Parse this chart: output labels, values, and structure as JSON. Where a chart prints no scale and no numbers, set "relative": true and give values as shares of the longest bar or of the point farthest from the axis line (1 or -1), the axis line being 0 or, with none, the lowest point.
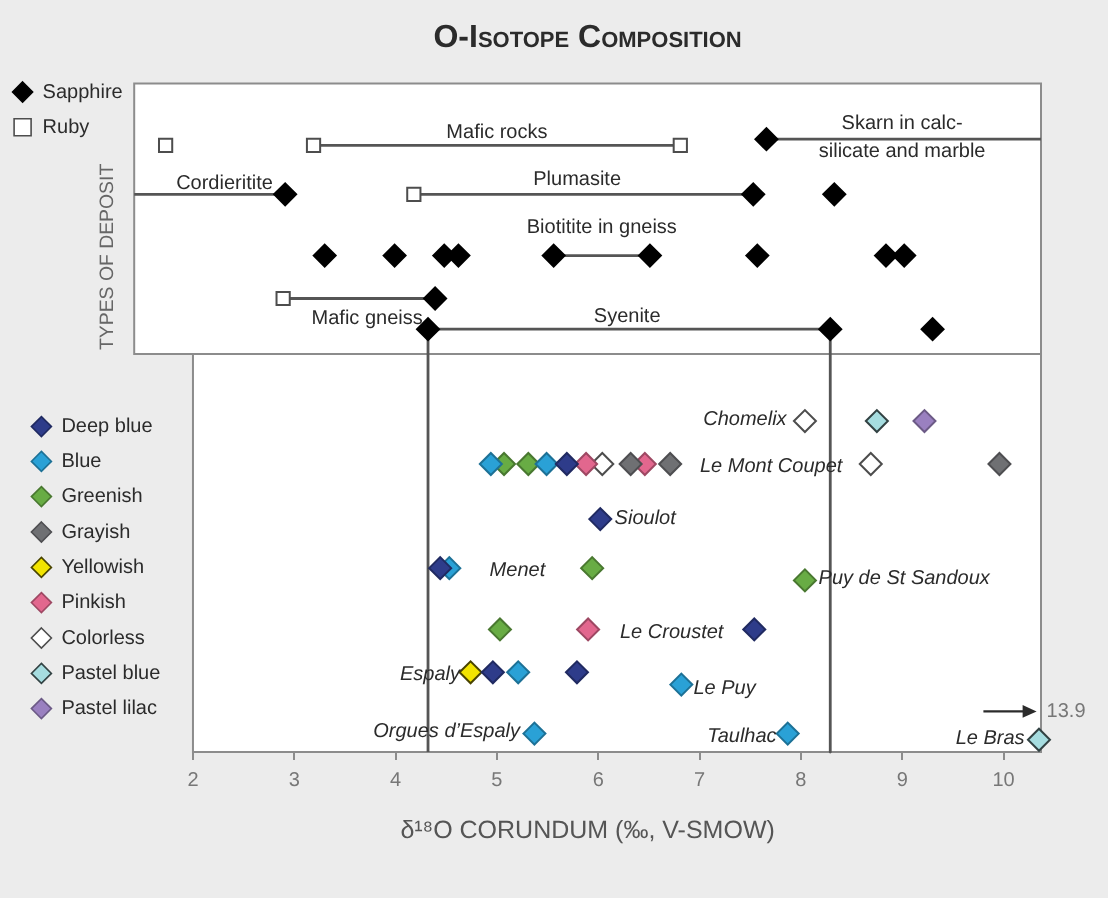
{
  "chart_data": {
    "type": "scatter",
    "title": "O-Isotope Composition",
    "ylabel": "TYPES OF DEPOSIT",
    "xlabel": "δ¹⁸O CORUNDUM (‰, V-SMOW)",
    "relative": true,
    "xlim": [
      1.42,
      10.37
    ],
    "xticks": [
      2,
      3,
      4,
      5,
      6,
      7,
      8,
      9,
      10
    ],
    "tick_labels": "x",
    "legend": "left",
    "marker": "diamond",
    "series": [
      {
        "name": "Sapphire",
        "color": "#000000",
        "x": [
          7.66,
          2.91,
          7.53,
          8.33,
          3.3,
          3.99,
          4.48,
          4.62,
          5.56,
          6.51,
          7.57,
          8.84,
          9.02,
          4.39,
          4.32,
          8.29,
          9.3
        ],
        "values": [
          1.0,
          0.91,
          0.91,
          0.91,
          0.81,
          0.81,
          0.81,
          0.81,
          0.81,
          0.81,
          0.81,
          0.81,
          0.81,
          0.74,
          0.69,
          0.69,
          0.69
        ]
      },
      {
        "name": "Ruby",
        "marker": "square",
        "color": "#ffffff",
        "x": [
          1.73,
          3.19,
          6.81,
          4.18,
          2.89
        ],
        "values": [
          0.99,
          0.99,
          0.99,
          0.91,
          0.74
        ]
      },
      {
        "name": "Mafic rocks",
        "type": "line",
        "marker": "none",
        "color": "#555555",
        "x": [
          3.19,
          6.81
        ],
        "values": [
          0.99,
          0.99
        ]
      },
      {
        "name": "Skarn in calc-\nsilicate and marble",
        "type": "line",
        "marker": "none",
        "color": "#555555",
        "x": [
          7.66,
          10.37
        ],
        "values": [
          1.0,
          1.0
        ]
      },
      {
        "name": "Cordieritite",
        "type": "line",
        "marker": "none",
        "color": "#555555",
        "x": [
          1.42,
          2.91
        ],
        "values": [
          0.91,
          0.91
        ]
      },
      {
        "name": "Plumasite",
        "type": "line",
        "marker": "none",
        "color": "#555555",
        "x": [
          4.18,
          7.53
        ],
        "values": [
          0.91,
          0.91
        ]
      },
      {
        "name": "Biotitite in gneiss",
        "type": "line",
        "marker": "none",
        "color": "#555555",
        "x": [
          5.56,
          6.51
        ],
        "values": [
          0.81,
          0.81
        ]
      },
      {
        "name": "Mafic gneiss",
        "type": "line",
        "marker": "none",
        "color": "#555555",
        "x": [
          2.89,
          4.39
        ],
        "values": [
          0.74,
          0.74
        ]
      },
      {
        "name": "Syenite",
        "type": "line",
        "marker": "none",
        "color": "#555555",
        "x": [
          4.32,
          4.32,
          8.29,
          8.29
        ],
        "values": [
          0,
          0.69,
          0.69,
          0
        ]
      },
      {
        "name": "Deep blue",
        "color": "#2e3c8a",
        "x": [
          5.69,
          6.02,
          4.44,
          7.54,
          4.96,
          5.79
        ],
        "values": [
          0.47,
          0.38,
          0.3,
          0.2,
          0.13,
          0.13
        ]
      },
      {
        "name": "Blue",
        "color": "#2aa1d6",
        "x": [
          4.94,
          5.49,
          4.53,
          5.21,
          6.82,
          5.37,
          7.87
        ],
        "values": [
          0.47,
          0.47,
          0.3,
          0.13,
          0.11,
          0.03,
          0.03
        ]
      },
      {
        "name": "Greenish",
        "color": "#68ac44",
        "x": [
          5.07,
          5.31,
          5.94,
          8.04,
          5.03
        ],
        "values": [
          0.47,
          0.47,
          0.3,
          0.28,
          0.2
        ]
      },
      {
        "name": "Grayish",
        "color": "#6f7073",
        "x": [
          6.32,
          6.71,
          9.96
        ],
        "values": [
          0.47,
          0.47,
          0.47
        ]
      },
      {
        "name": "Yellowish",
        "color": "#f2e400",
        "x": [
          4.74
        ],
        "values": [
          0.13
        ]
      },
      {
        "name": "Pinkish",
        "color": "#e2678e",
        "x": [
          5.88,
          6.46,
          5.9
        ],
        "values": [
          0.47,
          0.47,
          0.2
        ]
      },
      {
        "name": "Colorless",
        "color": "#ffffff",
        "x": [
          8.04,
          6.04,
          8.69
        ],
        "values": [
          0.54,
          0.47,
          0.47
        ]
      },
      {
        "name": "Pastel blue",
        "color": "#a6dde0",
        "x": [
          8.75,
          10.35
        ],
        "values": [
          0.54,
          0.02
        ]
      },
      {
        "name": "Pastel lilac",
        "color": "#9a80c0",
        "x": [
          9.22
        ],
        "values": [
          0.54
        ]
      }
    ],
    "annotations": [
      "Chomelix",
      "Le Mont Coupet",
      "Sioulot",
      "Menet",
      "Puy de St Sandoux",
      "Le Croustet",
      "Espaly",
      "Le Puy",
      "Orgues d’Espaly",
      "Taulhac",
      "Le Bras",
      "13.9"
    ]
  }
}
